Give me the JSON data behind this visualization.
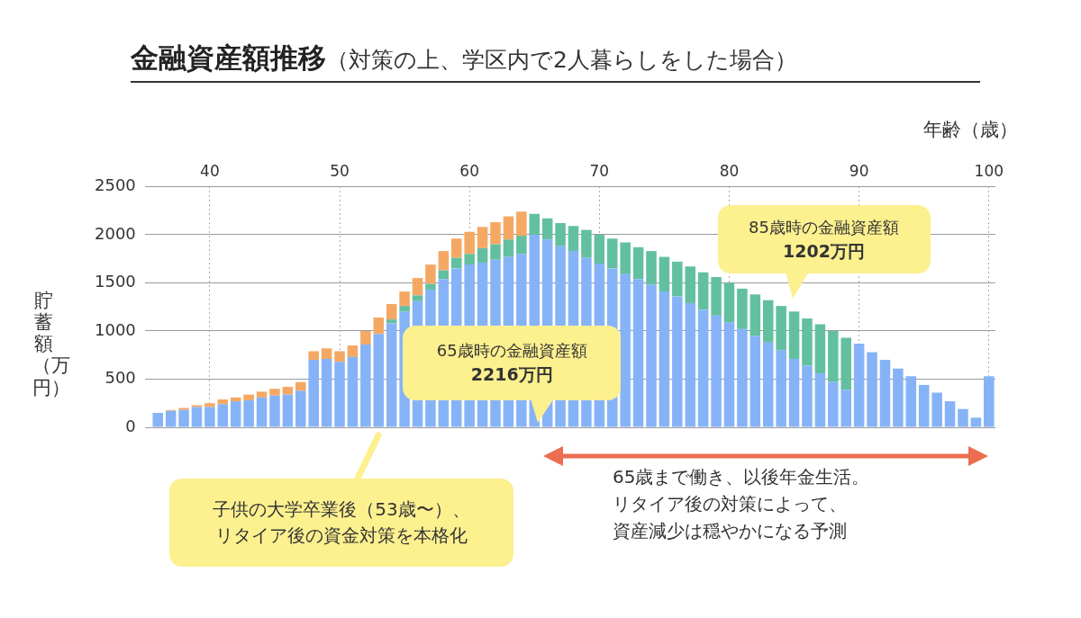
{
  "chart_data": {
    "type": "bar",
    "title": "金融資産額推移",
    "subtitle": "（対策の上、学区内で2人暮らしをした場合）",
    "xlabel": "年齢（歳）",
    "ylabel": "貯蓄額（万円）",
    "x": [
      36,
      37,
      38,
      39,
      40,
      41,
      42,
      43,
      44,
      45,
      46,
      47,
      48,
      49,
      50,
      51,
      52,
      53,
      54,
      55,
      56,
      57,
      58,
      59,
      60,
      61,
      62,
      63,
      64,
      65,
      66,
      67,
      68,
      69,
      70,
      71,
      72,
      73,
      74,
      75,
      76,
      77,
      78,
      79,
      80,
      81,
      82,
      83,
      84,
      85,
      86,
      87,
      88,
      89,
      90,
      91,
      92,
      93,
      94,
      95,
      96,
      97,
      98,
      99,
      100
    ],
    "series": [
      {
        "color": "#86b3f7",
        "values": [
          150,
          170,
          180,
          210,
          210,
          240,
          270,
          280,
          310,
          330,
          340,
          380,
          700,
          710,
          680,
          730,
          860,
          970,
          1080,
          1200,
          1310,
          1430,
          1540,
          1650,
          1690,
          1710,
          1740,
          1770,
          1800,
          2000,
          1950,
          1880,
          1830,
          1760,
          1700,
          1650,
          1590,
          1540,
          1480,
          1410,
          1360,
          1290,
          1220,
          1160,
          1090,
          1020,
          950,
          880,
          800,
          710,
          640,
          560,
          470,
          390,
          870,
          780,
          700,
          610,
          530,
          440,
          360,
          270,
          190,
          100,
          530
        ]
      },
      {
        "color": "#62c0a0",
        "values": [
          null,
          null,
          null,
          null,
          null,
          null,
          null,
          null,
          null,
          null,
          null,
          null,
          null,
          null,
          null,
          null,
          null,
          null,
          40,
          60,
          60,
          60,
          90,
          110,
          110,
          150,
          160,
          180,
          190,
          216,
          220,
          240,
          260,
          290,
          300,
          310,
          330,
          330,
          350,
          360,
          360,
          380,
          390,
          400,
          410,
          420,
          430,
          440,
          460,
          492,
          490,
          510,
          530,
          540,
          null,
          null,
          null,
          null,
          null,
          null,
          null,
          null,
          null,
          null,
          null
        ]
      },
      {
        "color": "#f5a864",
        "values": [
          null,
          10,
          20,
          20,
          40,
          50,
          40,
          60,
          60,
          70,
          80,
          90,
          90,
          110,
          110,
          120,
          140,
          170,
          160,
          150,
          180,
          200,
          200,
          200,
          230,
          220,
          230,
          240,
          250,
          null,
          null,
          null,
          null,
          null,
          null,
          null,
          null,
          null,
          null,
          null,
          null,
          null,
          null,
          null,
          null,
          null,
          null,
          null,
          null,
          null,
          null,
          null,
          null,
          null,
          null,
          null,
          null,
          null,
          null,
          null,
          null,
          null,
          null,
          null,
          null
        ]
      }
    ],
    "stacked": true,
    "xlim": [
      35,
      100.5
    ],
    "xticks": [
      40,
      50,
      60,
      70,
      80,
      90,
      100
    ],
    "ylim": [
      0,
      2500
    ],
    "yticks": [
      0,
      500,
      1000,
      1500,
      2000,
      2500
    ],
    "grid": true,
    "annotations": [
      {
        "text": "65歳時の金融資産額\n2216万円",
        "x": 65,
        "y": 0
      },
      {
        "text": "85歳時の金融資産額\n1202万円",
        "x": 85,
        "y": 1202
      },
      "子供の大学卒業後（53歳〜）、リタイア後の資金対策を本格化",
      "65歳まで働き、以後年金生活。リタイア後の対策によって、資産減少は穏やかになる予測"
    ]
  }
}
